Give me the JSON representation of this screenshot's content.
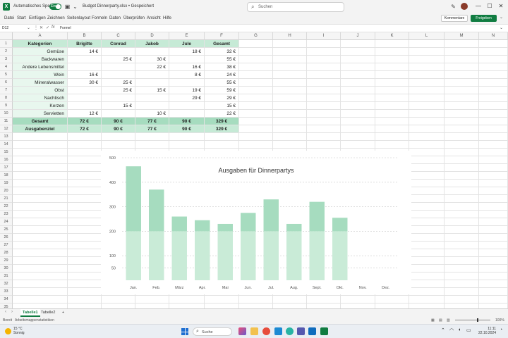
{
  "titlebar": {
    "autosave_label": "Automatisches Speichern",
    "autosave_toggle": "Ein",
    "doc_title": "Budget Dinnerparty.xlsx • Gespeichert",
    "search_placeholder": "Suchen",
    "minimize": "—",
    "maximize": "☐",
    "close": "✕"
  },
  "menu": {
    "items": [
      "Datei",
      "Start",
      "Einfügen",
      "Zeichnen",
      "Seitenlayout",
      "Formeln",
      "Daten",
      "Überprüfen",
      "Ansicht",
      "Hilfe"
    ],
    "comment_button": "Kommentare",
    "share_button": "Freigeben"
  },
  "formula_bar": {
    "name_box": "D12",
    "formula": "Formel"
  },
  "columns": [
    "A",
    "B",
    "C",
    "D",
    "E",
    "F",
    "G",
    "H",
    "I",
    "J",
    "K",
    "L",
    "M",
    "N"
  ],
  "rows": [
    "1",
    "2",
    "3",
    "4",
    "5",
    "6",
    "7",
    "8",
    "9",
    "10",
    "11",
    "12",
    "13",
    "14",
    "15",
    "16",
    "17",
    "18",
    "19",
    "20",
    "21",
    "22",
    "23",
    "24",
    "25",
    "26",
    "27",
    "28",
    "29",
    "30",
    "31",
    "32",
    "33",
    "34",
    "35"
  ],
  "table": {
    "header": [
      "Kategorien",
      "Brigitte",
      "Conrad",
      "Jakob",
      "Jule",
      "Gesamt"
    ],
    "body": [
      [
        "Gemüse",
        "14 €",
        "",
        "",
        "18 €",
        "32 €"
      ],
      [
        "Backwaren",
        "",
        "25 €",
        "30 €",
        "",
        "55 €"
      ],
      [
        "Andere Lebensmittel",
        "",
        "",
        "22 €",
        "16 €",
        "38 €"
      ],
      [
        "Wein",
        "16 €",
        "",
        "",
        "8 €",
        "24 €"
      ],
      [
        "Mineralwasser",
        "30 €",
        "25 €",
        "",
        "",
        "55 €"
      ],
      [
        "Obst",
        "",
        "25 €",
        "15 €",
        "19 €",
        "59 €"
      ],
      [
        "Nachtisch",
        "",
        "",
        "",
        "29 €",
        "29 €"
      ],
      [
        "Kerzen",
        "",
        "15 €",
        "",
        "",
        "15 €"
      ],
      [
        "Servietten",
        "12 €",
        "",
        "10 €",
        "",
        "22 €"
      ]
    ],
    "total": [
      "Gesamt",
      "72 €",
      "90 €",
      "77 €",
      "90 €",
      "329 €"
    ],
    "goal": [
      "Ausgabenziel",
      "72 €",
      "90 €",
      "77 €",
      "90 €",
      "329 €"
    ]
  },
  "chart_data": {
    "type": "bar",
    "title": "Ausgaben für Dinnerpartys",
    "categories": [
      "Jan.",
      "Feb.",
      "März",
      "Apr.",
      "Mai",
      "Jun.",
      "Jul.",
      "Aug.",
      "Sept.",
      "Okt.",
      "Nov.",
      "Dez."
    ],
    "series": [
      {
        "values": [
          200,
          200,
          200,
          200,
          200,
          200,
          200,
          200,
          200,
          200,
          null,
          null
        ],
        "color": "#c9ebd7"
      },
      {
        "values": [
          265,
          170,
          60,
          45,
          30,
          75,
          130,
          30,
          120,
          55,
          null,
          null
        ],
        "color": "#a6dcbf"
      }
    ],
    "stacked": true,
    "ylim": [
      0,
      500
    ],
    "yticks": [
      50,
      100,
      200,
      300,
      400,
      500
    ],
    "grid": true,
    "xlabel": "",
    "ylabel": ""
  },
  "sheets": {
    "tabs": [
      "Tabelle1",
      "Tabelle2"
    ],
    "add": "+"
  },
  "status": {
    "ready": "Bereit",
    "stats": "Arbeitsmappenstatistiken",
    "zoom": "100%"
  },
  "taskbar": {
    "temp": "15 °C",
    "weather": "Sonnig",
    "search": "Suche",
    "time": "11:11",
    "date": "22.10.2024"
  },
  "colors": {
    "brand": "#107c41",
    "header_fill": "#c6ead6",
    "total_fill": "#a6dcbf",
    "category_fill": "#e8f7ee"
  }
}
